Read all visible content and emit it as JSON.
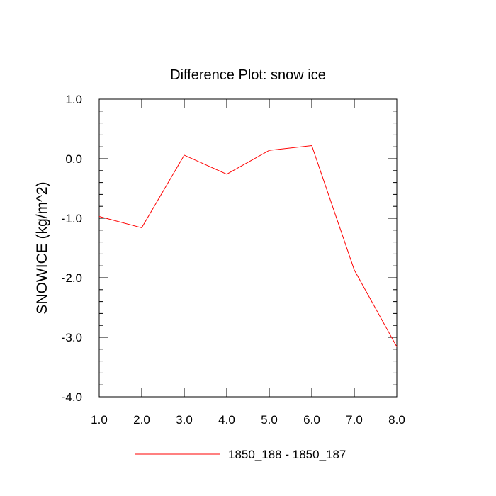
{
  "chart_data": {
    "type": "line",
    "title": "Difference Plot: snow ice",
    "xlabel": "",
    "ylabel": "SNOWICE  (kg/m^2)",
    "xlim": [
      1.0,
      8.0
    ],
    "ylim": [
      -4.0,
      1.0
    ],
    "x_ticks": [
      "1.0",
      "2.0",
      "3.0",
      "4.0",
      "5.0",
      "6.0",
      "7.0",
      "8.0"
    ],
    "y_ticks": [
      "1.0",
      "0.0",
      "-1.0",
      "-2.0",
      "-3.0",
      "-4.0"
    ],
    "grid": false,
    "legend_position": "bottom-center",
    "series": [
      {
        "name": "1850_188 - 1850_187",
        "color": "#ff0000",
        "x": [
          1,
          2,
          3,
          4,
          5,
          6,
          7,
          8
        ],
        "y": [
          -0.97,
          -1.16,
          0.06,
          -0.26,
          0.14,
          0.22,
          -1.87,
          -3.16
        ]
      }
    ]
  }
}
